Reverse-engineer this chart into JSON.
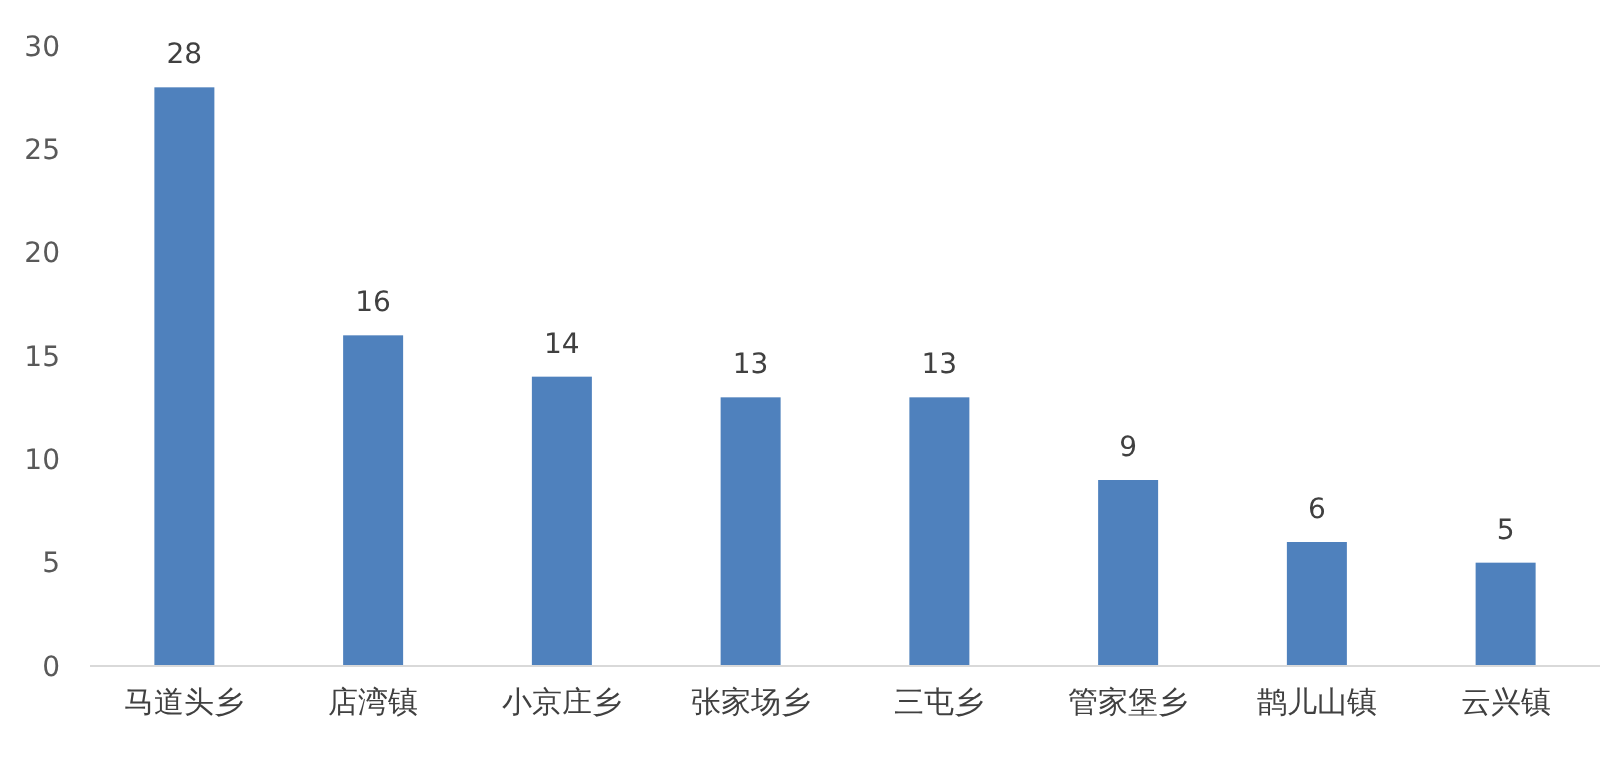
{
  "chart_data": {
    "type": "bar",
    "categories": [
      "马道头乡",
      "店湾镇",
      "小京庄乡",
      "张家场乡",
      "三屯乡",
      "管家堡乡",
      "鹊儿山镇",
      "云兴镇"
    ],
    "values": [
      28,
      16,
      14,
      13,
      13,
      9,
      6,
      5
    ],
    "color": "#4f81bd",
    "ylim": [
      0,
      30
    ],
    "yticks": [
      0,
      5,
      10,
      15,
      20,
      25,
      30
    ],
    "data_labels": true
  }
}
